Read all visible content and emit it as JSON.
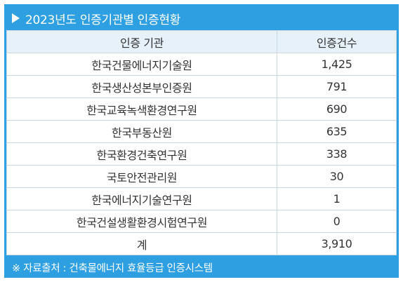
{
  "title": "2023년도 인증기관별 인증현황",
  "table": {
    "headers": [
      "인증 기관",
      "인증건수"
    ],
    "rows": [
      {
        "org": "한국건물에너지기술원",
        "count": "1,425"
      },
      {
        "org": "한국생산성본부인증원",
        "count": "791"
      },
      {
        "org": "한국교육녹색환경연구원",
        "count": "690"
      },
      {
        "org": "한국부동산원",
        "count": "635"
      },
      {
        "org": "한국환경건축연구원",
        "count": "338"
      },
      {
        "org": "국토안전관리원",
        "count": "30"
      },
      {
        "org": "한국에너지기술연구원",
        "count": "1"
      },
      {
        "org": "한국건설생활환경시험연구원",
        "count": "0"
      }
    ],
    "total": {
      "label": "계",
      "count": "3,910"
    }
  },
  "source": "※ 자료출처 : 건축물에너지 효율등급 인증시스템",
  "colors": {
    "accent": "#2e9fe0",
    "header_bg": "#e6f1f9",
    "border": "#c9d8e3"
  }
}
